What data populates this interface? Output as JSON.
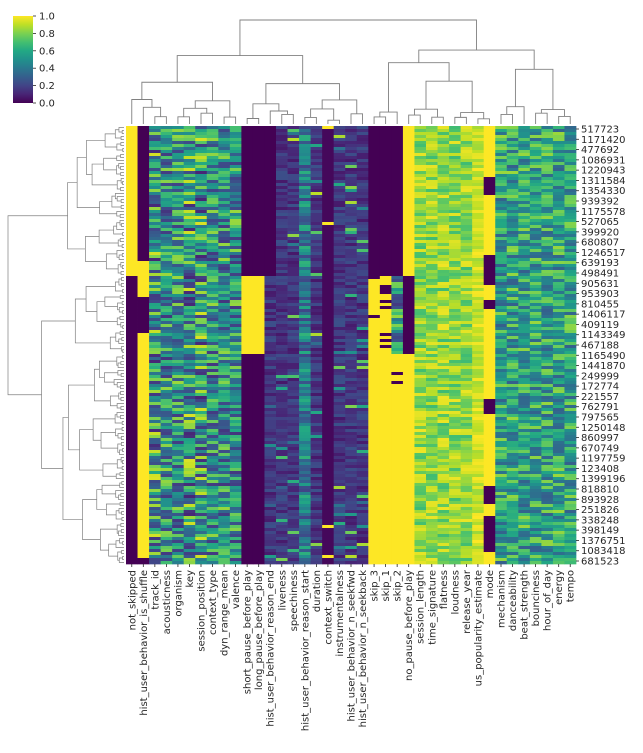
{
  "chart_data": {
    "type": "heatmap",
    "title": "",
    "colormap": "viridis",
    "colorbar": {
      "range": [
        0.0,
        1.0
      ],
      "ticks": [
        "0.0",
        "0.2",
        "0.4",
        "0.6",
        "0.8",
        "1.0"
      ],
      "placement": "top-left"
    },
    "clustered": true,
    "row_dendrogram": "left",
    "col_dendrogram": "top",
    "col_labels": [
      "not_skipped",
      "hist_user_behavior_is_shuffle",
      "track_id",
      "acousticness",
      "organism",
      "key",
      "session_position",
      "context_type",
      "dyn_range_mean",
      "valence",
      "short_pause_before_play",
      "long_pause_before_play",
      "hist_user_behavior_reason_end",
      "liveness",
      "speechiness",
      "hist_user_behavior_reason_start",
      "duration",
      "context_switch",
      "instrumentalness",
      "hist_user_behavior_n_seekfwd",
      "hist_user_behavior_n_seekback",
      "skip_3",
      "skip_1",
      "skip_2",
      "no_pause_before_play",
      "session_length",
      "time_signature",
      "flatness",
      "loudness",
      "release_year",
      "us_popularity_estimate",
      "mode",
      "mechanism",
      "danceability",
      "beat_strength",
      "bounciness",
      "hour_of_day",
      "energy",
      "tempo"
    ],
    "row_tick_labels": [
      "517723",
      "1171420",
      "477692",
      "1086931",
      "1220943",
      "1311584",
      "1354330",
      "939392",
      "1175578",
      "527065",
      "399920",
      "680807",
      "1246517",
      "639193",
      "498491",
      "905631",
      "953903",
      "810455",
      "1406117",
      "409119",
      "1143349",
      "467188",
      "1165490",
      "1441870",
      "249999",
      "172774",
      "221557",
      "762791",
      "797565",
      "1250148",
      "860997",
      "670749",
      "1197759",
      "123408",
      "1399196",
      "818810",
      "893928",
      "251826",
      "338248",
      "398149",
      "1376751",
      "1083418",
      "681523"
    ],
    "row_blocks": [
      {
        "rows": [
          0,
          0.34
        ],
        "constant_cols": {
          "not_skipped": 1,
          "short_pause_before_play": 0,
          "long_pause_before_play": 0,
          "hist_user_behavior_reason_end": 0,
          "skip_3": 0,
          "skip_1": 0,
          "skip_2": 0,
          "no_pause_before_play": 1
        }
      },
      {
        "rows": [
          0.34,
          0.52
        ],
        "constant_cols": {
          "not_skipped": 0,
          "short_pause_before_play": 1,
          "long_pause_before_play": 1,
          "skip_3": 1,
          "skip_1": 1,
          "no_pause_before_play": 0
        }
      },
      {
        "rows": [
          0.52,
          1.0
        ],
        "constant_cols": {
          "not_skipped": 0,
          "short_pause_before_play": 0,
          "long_pause_before_play": 0,
          "skip_3": 1,
          "skip_1": 1,
          "skip_2": 1,
          "no_pause_before_play": 1
        }
      }
    ]
  }
}
